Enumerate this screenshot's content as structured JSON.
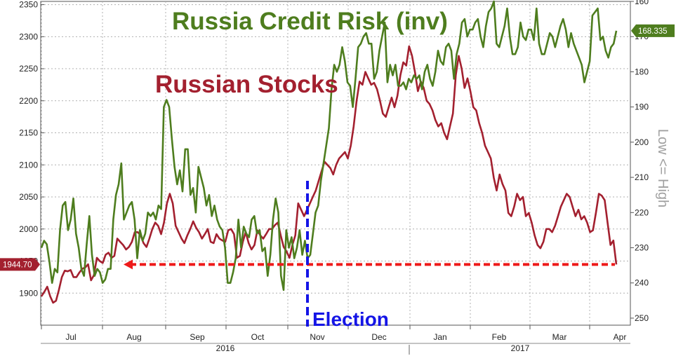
{
  "colors": {
    "stocks": "#a3202f",
    "credit": "#4e7d1e",
    "election": "#1515e6",
    "support": "#ee1a1a",
    "tag_stocks_bg": "#a3202f",
    "tag_credit_bg": "#4e7d1e"
  },
  "chart_data": {
    "type": "line",
    "title_credit": "Russia Credit Risk (inv)",
    "title_stocks": "Russian Stocks",
    "left_axis": {
      "ylim": [
        1850,
        2355
      ],
      "ticks": [
        1900,
        1950,
        2000,
        2050,
        2100,
        2150,
        2200,
        2250,
        2300,
        2350
      ]
    },
    "right_axis": {
      "label": "Low <= High",
      "inverted": true,
      "ylim": [
        160,
        252
      ],
      "ticks": [
        160,
        170,
        180,
        190,
        200,
        210,
        220,
        230,
        240,
        250
      ]
    },
    "x_axis": {
      "month_labels": [
        "Jul",
        "Aug",
        "Sep",
        "Oct",
        "Nov",
        "Dec",
        "Jan",
        "Feb",
        "Mar",
        "Apr"
      ],
      "year_labels": [
        "2016",
        "2017"
      ]
    },
    "series": [
      {
        "name": "Russian Stocks",
        "axis": "left",
        "last_value_label": "1944.70",
        "values": [
          1895,
          1902,
          1910,
          1895,
          1885,
          1888,
          1905,
          1925,
          1935,
          1934,
          1936,
          1925,
          1925,
          1932,
          1938,
          1940,
          1945,
          1920,
          1928,
          1955,
          1950,
          1947,
          1960,
          1963,
          1955,
          1958,
          1985,
          1980,
          1975,
          1968,
          1972,
          1980,
          1995,
          1995,
          1990,
          1978,
          1972,
          1985,
          2000,
          2010,
          2005,
          1992,
          2010,
          2040,
          2055,
          2040,
          2005,
          1995,
          1985,
          1978,
          1990,
          2000,
          2012,
          2002,
          1995,
          1985,
          1992,
          2000,
          1980,
          1978,
          1992,
          1985,
          1982,
          1980,
          1998,
          2000,
          1992,
          1955,
          1958,
          1980,
          1995,
          1978,
          1968,
          1975,
          1998,
          1990,
          1985,
          1992,
          2000,
          2000,
          2006,
          2010,
          1990,
          1972,
          1965,
          1955,
          1975,
          1990,
          2040,
          2030,
          2020,
          2030,
          2040,
          2050,
          2060,
          2075,
          2090,
          2105,
          2100,
          2095,
          2085,
          2100,
          2110,
          2115,
          2120,
          2110,
          2130,
          2160,
          2200,
          2230,
          2225,
          2245,
          2235,
          2225,
          2228,
          2218,
          2200,
          2180,
          2175,
          2190,
          2205,
          2190,
          2208,
          2240,
          2260,
          2255,
          2285,
          2270,
          2245,
          2215,
          2230,
          2220,
          2200,
          2195,
          2185,
          2170,
          2160,
          2165,
          2150,
          2140,
          2160,
          2180,
          2240,
          2270,
          2250,
          2220,
          2235,
          2215,
          2190,
          2185,
          2165,
          2150,
          2130,
          2120,
          2110,
          2080,
          2060,
          2085,
          2070,
          2060,
          2025,
          2020,
          2035,
          2055,
          2045,
          2050,
          2020,
          2025,
          2010,
          1990,
          1975,
          1970,
          1980,
          2000,
          2000,
          1995,
          2005,
          2020,
          2035,
          2045,
          2055,
          2050,
          2035,
          2020,
          2030,
          2015,
          2020,
          2010,
          1995,
          1998,
          2025,
          2055,
          2052,
          2045,
          2010,
          1975,
          1982,
          1944.7
        ]
      },
      {
        "name": "Russia Credit Risk (inv)",
        "axis": "right",
        "last_value_label": "168.335",
        "values": [
          230,
          228,
          229,
          234,
          240,
          236,
          237,
          225,
          218,
          217,
          225,
          222,
          216,
          226,
          230,
          236,
          238,
          229,
          221,
          232,
          238,
          236,
          237,
          240,
          239,
          236,
          236,
          222,
          215,
          212,
          206,
          222,
          220,
          218,
          217,
          222,
          233,
          225,
          228,
          226,
          220,
          221,
          220,
          222,
          218,
          219,
          190,
          188,
          190,
          199,
          207,
          212,
          208,
          214,
          202,
          202,
          215,
          213,
          220,
          207,
          210,
          213,
          218,
          215,
          221,
          218,
          222,
          224,
          225,
          230,
          240,
          240,
          237,
          233,
          222,
          230,
          224,
          226,
          227,
          222,
          221,
          226,
          225,
          231,
          230,
          238,
          232,
          222,
          216,
          220,
          238,
          242,
          225,
          230,
          227,
          233,
          230,
          225,
          232,
          228,
          233,
          232,
          226,
          220,
          218,
          211,
          206,
          201,
          196,
          185,
          178,
          180,
          178,
          173,
          177,
          183,
          184,
          190,
          182,
          173,
          172,
          170,
          169,
          172,
          172,
          182,
          180,
          174,
          170,
          166,
          183,
          178,
          181,
          178,
          184,
          184,
          183,
          185,
          182,
          183,
          181,
          182,
          181,
          185,
          180,
          178,
          182,
          184,
          180,
          174,
          177,
          178,
          173,
          172,
          174,
          182,
          175,
          172,
          166,
          165,
          170,
          168,
          168,
          166,
          165,
          170,
          173,
          167,
          163,
          162,
          160,
          172,
          173,
          170,
          167,
          162,
          170,
          175,
          175,
          173,
          166,
          170,
          171,
          168,
          168,
          171,
          162,
          172,
          175,
          175,
          172,
          169,
          170,
          173,
          170,
          167,
          165,
          168,
          173,
          169,
          172,
          174,
          176,
          178,
          183,
          180,
          177,
          164,
          163,
          162,
          171,
          170,
          174,
          176,
          173,
          172,
          168.335
        ]
      }
    ],
    "annotations": {
      "election_label": "Election",
      "support_level": 1944.7
    }
  }
}
